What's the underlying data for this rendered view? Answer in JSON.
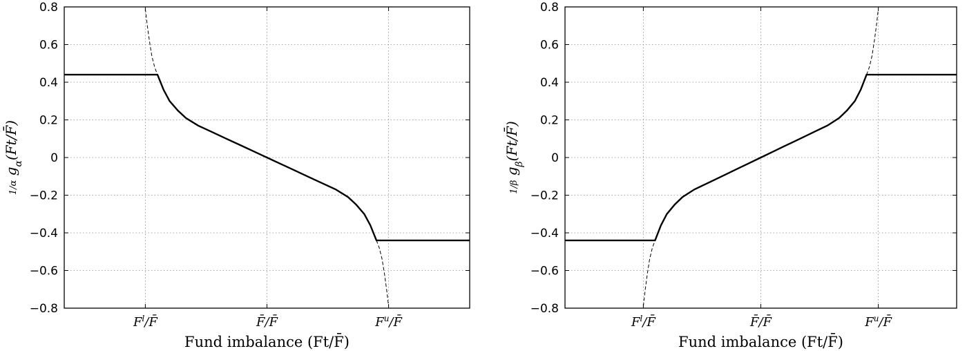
{
  "chart_data": [
    {
      "type": "line",
      "xlabel": "Fund imbalance (Ft/F̄)",
      "ylabel": "(1/α) gα(Ft/F̄)",
      "ylabel_main": "g",
      "ylabel_sub": "α",
      "ylabel_frac_den": "α",
      "ylabel_arg": "(Ft/F̄)",
      "xlim": [
        0,
        1
      ],
      "ylim": [
        -0.8,
        0.8
      ],
      "x_ticks": [
        {
          "x": 0.2,
          "label": "Fl/F̄"
        },
        {
          "x": 0.5,
          "label": "F̄/F̄"
        },
        {
          "x": 0.8,
          "label": "Fu/F̄"
        }
      ],
      "y_ticks": [
        {
          "y": 0.8,
          "label": "0.8"
        },
        {
          "y": 0.6,
          "label": "0.6"
        },
        {
          "y": 0.4,
          "label": "0.4"
        },
        {
          "y": 0.2,
          "label": "0.2"
        },
        {
          "y": 0,
          "label": "0"
        },
        {
          "y": -0.2,
          "label": "−0.2"
        },
        {
          "y": -0.4,
          "label": "−0.4"
        },
        {
          "y": -0.6,
          "label": "−0.6"
        },
        {
          "y": -0.8,
          "label": "−0.8"
        }
      ],
      "grid": true,
      "series": [
        {
          "style": "solid",
          "points": [
            [
              0,
              0.44
            ],
            [
              0.23,
              0.44
            ],
            [
              0.245,
              0.36
            ],
            [
              0.26,
              0.3
            ],
            [
              0.28,
              0.25
            ],
            [
              0.3,
              0.21
            ],
            [
              0.33,
              0.17
            ],
            [
              0.36,
              0.14
            ],
            [
              0.4,
              0.1
            ],
            [
              0.44,
              0.06
            ],
            [
              0.47,
              0.03
            ],
            [
              0.5,
              0
            ],
            [
              0.53,
              -0.03
            ],
            [
              0.56,
              -0.06
            ],
            [
              0.6,
              -0.1
            ],
            [
              0.64,
              -0.14
            ],
            [
              0.67,
              -0.17
            ],
            [
              0.7,
              -0.21
            ],
            [
              0.72,
              -0.25
            ],
            [
              0.74,
              -0.3
            ],
            [
              0.755,
              -0.36
            ],
            [
              0.77,
              -0.44
            ],
            [
              1,
              -0.44
            ]
          ]
        },
        {
          "style": "dashed",
          "points": [
            [
              0.2,
              0.79
            ],
            [
              0.205,
              0.7
            ],
            [
              0.21,
              0.62
            ],
            [
              0.216,
              0.54
            ],
            [
              0.223,
              0.48
            ],
            [
              0.23,
              0.44
            ]
          ]
        },
        {
          "style": "dashed",
          "points": [
            [
              0.77,
              -0.44
            ],
            [
              0.777,
              -0.48
            ],
            [
              0.784,
              -0.54
            ],
            [
              0.79,
              -0.62
            ],
            [
              0.795,
              -0.7
            ],
            [
              0.8,
              -0.79
            ]
          ]
        }
      ]
    },
    {
      "type": "line",
      "xlabel": "Fund imbalance (Ft/F̄)",
      "ylabel": "(1/β) gβ(Ft/F̄)",
      "ylabel_main": "g",
      "ylabel_sub": "β",
      "ylabel_frac_den": "β",
      "ylabel_arg": "(Ft/F̄)",
      "xlim": [
        0,
        1
      ],
      "ylim": [
        -0.8,
        0.8
      ],
      "x_ticks": [
        {
          "x": 0.2,
          "label": "Fl/F̄"
        },
        {
          "x": 0.5,
          "label": "F̄/F̄"
        },
        {
          "x": 0.8,
          "label": "Fu/F̄"
        }
      ],
      "y_ticks": [
        {
          "y": 0.8,
          "label": "0.8"
        },
        {
          "y": 0.6,
          "label": "0.6"
        },
        {
          "y": 0.4,
          "label": "0.4"
        },
        {
          "y": 0.2,
          "label": "0.2"
        },
        {
          "y": 0,
          "label": "0"
        },
        {
          "y": -0.2,
          "label": "−0.2"
        },
        {
          "y": -0.4,
          "label": "−0.4"
        },
        {
          "y": -0.6,
          "label": "−0.6"
        },
        {
          "y": -0.8,
          "label": "−0.8"
        }
      ],
      "grid": true,
      "series": [
        {
          "style": "solid",
          "points": [
            [
              0,
              -0.44
            ],
            [
              0.23,
              -0.44
            ],
            [
              0.245,
              -0.36
            ],
            [
              0.26,
              -0.3
            ],
            [
              0.28,
              -0.25
            ],
            [
              0.3,
              -0.21
            ],
            [
              0.33,
              -0.17
            ],
            [
              0.36,
              -0.14
            ],
            [
              0.4,
              -0.1
            ],
            [
              0.44,
              -0.06
            ],
            [
              0.47,
              -0.03
            ],
            [
              0.5,
              0
            ],
            [
              0.53,
              0.03
            ],
            [
              0.56,
              0.06
            ],
            [
              0.6,
              0.1
            ],
            [
              0.64,
              0.14
            ],
            [
              0.67,
              0.17
            ],
            [
              0.7,
              0.21
            ],
            [
              0.72,
              0.25
            ],
            [
              0.74,
              0.3
            ],
            [
              0.755,
              0.36
            ],
            [
              0.77,
              0.44
            ],
            [
              1,
              0.44
            ]
          ]
        },
        {
          "style": "dashed",
          "points": [
            [
              0.2,
              -0.79
            ],
            [
              0.205,
              -0.7
            ],
            [
              0.21,
              -0.62
            ],
            [
              0.216,
              -0.54
            ],
            [
              0.223,
              -0.48
            ],
            [
              0.23,
              -0.44
            ]
          ]
        },
        {
          "style": "dashed",
          "points": [
            [
              0.77,
              0.44
            ],
            [
              0.777,
              0.48
            ],
            [
              0.784,
              0.54
            ],
            [
              0.79,
              0.62
            ],
            [
              0.795,
              0.7
            ],
            [
              0.8,
              0.79
            ]
          ]
        }
      ]
    }
  ]
}
